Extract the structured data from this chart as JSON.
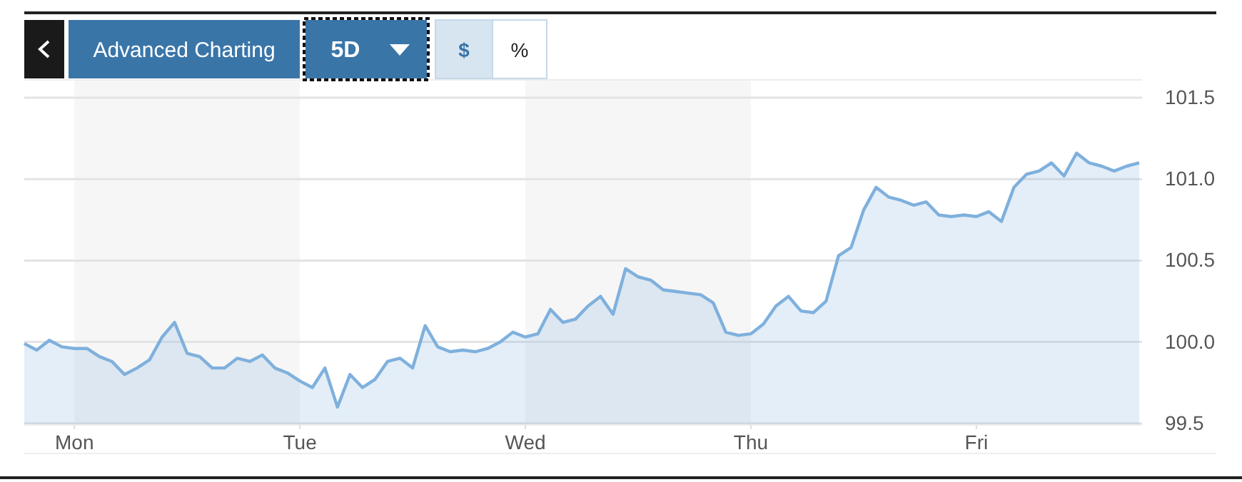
{
  "chart_data": {
    "type": "area",
    "annotations": [
      "Advanced Charting",
      "5D",
      "$",
      "%"
    ],
    "categories": [
      null,
      null,
      null,
      null,
      "Mon",
      null,
      null,
      null,
      null,
      null,
      null,
      null,
      null,
      null,
      null,
      null,
      null,
      null,
      null,
      null,
      null,
      null,
      "Tue",
      null,
      null,
      null,
      null,
      null,
      null,
      null,
      null,
      null,
      null,
      null,
      null,
      null,
      null,
      null,
      null,
      null,
      "Wed",
      null,
      null,
      null,
      null,
      null,
      null,
      null,
      null,
      null,
      null,
      null,
      null,
      null,
      null,
      null,
      null,
      null,
      "Thu",
      null,
      null,
      null,
      null,
      null,
      null,
      null,
      null,
      null,
      null,
      null,
      null,
      null,
      null,
      null,
      null,
      null,
      "Fri",
      null,
      null,
      null,
      null,
      null,
      null,
      null,
      null,
      null,
      null,
      null,
      null,
      null
    ],
    "series": [
      {
        "color": "#7fb0dd",
        "values": [
          99.99,
          99.95,
          100.01,
          99.97,
          99.96,
          99.96,
          99.91,
          99.88,
          99.8,
          99.84,
          99.89,
          100.03,
          100.12,
          99.93,
          99.91,
          99.84,
          99.84,
          99.9,
          99.88,
          99.92,
          99.84,
          99.81,
          99.76,
          99.72,
          99.84,
          99.6,
          99.8,
          99.72,
          99.77,
          99.88,
          99.9,
          99.84,
          100.1,
          99.97,
          99.94,
          99.95,
          99.94,
          99.96,
          100.0,
          100.06,
          100.03,
          100.05,
          100.2,
          100.12,
          100.14,
          100.22,
          100.28,
          100.17,
          100.45,
          100.4,
          100.38,
          100.32,
          100.31,
          100.3,
          100.29,
          100.24,
          100.06,
          100.04,
          100.05,
          100.11,
          100.22,
          100.28,
          100.19,
          100.18,
          100.25,
          100.53,
          100.58,
          100.81,
          100.95,
          100.89,
          100.87,
          100.84,
          100.86,
          100.78,
          100.77,
          100.78,
          100.77,
          100.8,
          100.74,
          100.95,
          101.03,
          101.05,
          101.1,
          101.02,
          101.16,
          101.1,
          101.08,
          101.05,
          101.08,
          101.1
        ]
      }
    ],
    "ylim": [
      99.49,
      101.61
    ],
    "yticks": [
      {
        "value": 99.5,
        "label": "99.5"
      },
      {
        "value": 100,
        "label": "100.0"
      },
      {
        "value": 100.5,
        "label": "100.5"
      },
      {
        "value": 101,
        "label": "101.0"
      },
      {
        "value": 101.5,
        "label": "101.5"
      }
    ],
    "bands": [
      {
        "axis": "x",
        "from": "Mon",
        "to": "Tue",
        "color": "#f6f6f6"
      },
      {
        "axis": "x",
        "from": "Wed",
        "to": "Thu",
        "color": "#f6f6f6"
      }
    ],
    "grid": "y"
  }
}
